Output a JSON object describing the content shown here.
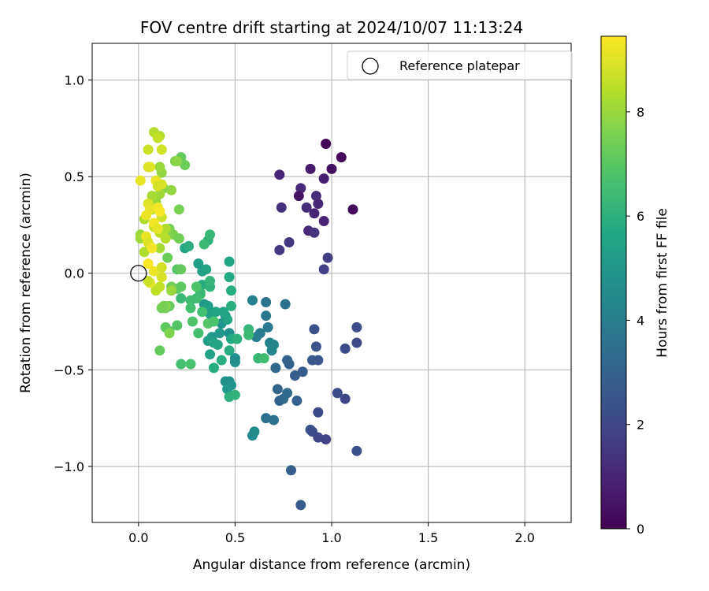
{
  "chart_data": {
    "type": "scatter",
    "title": "FOV centre drift starting at 2024/10/07 11:13:24",
    "xlabel": "Angular distance from reference (arcmin)",
    "ylabel": "Rotation from reference (arcmin)",
    "xlim": [
      -0.24,
      2.24
    ],
    "ylim": [
      -1.29,
      1.19
    ],
    "xticks": [
      0.0,
      0.5,
      1.0,
      1.5,
      2.0
    ],
    "xtick_labels": [
      "0.0",
      "0.5",
      "1.0",
      "1.5",
      "2.0"
    ],
    "yticks": [
      -1.0,
      -0.5,
      0.0,
      0.5,
      1.0
    ],
    "ytick_labels": [
      "−1.0",
      "−0.5",
      "0.0",
      "0.5",
      "1.0"
    ],
    "grid": true,
    "legend": {
      "placement": "top-right",
      "entries": [
        "Reference platepar"
      ]
    },
    "reference_point": {
      "x": 0.0,
      "y": 0.0
    },
    "colorbar": {
      "label": "Hours from first FF file",
      "range": [
        0,
        9.45
      ],
      "colormap": "viridis",
      "ticks": [
        0,
        2,
        4,
        6,
        8
      ],
      "tick_labels": [
        "0",
        "2",
        "4",
        "6",
        "8"
      ]
    },
    "points": [
      {
        "x": 0.97,
        "y": 0.67,
        "c": 0.1
      },
      {
        "x": 1.05,
        "y": 0.6,
        "c": 0.2
      },
      {
        "x": 1.11,
        "y": 0.33,
        "c": 0.2
      },
      {
        "x": 1.0,
        "y": 0.54,
        "c": 0.4
      },
      {
        "x": 0.89,
        "y": 0.54,
        "c": 0.7
      },
      {
        "x": 0.96,
        "y": 0.49,
        "c": 0.8
      },
      {
        "x": 0.73,
        "y": 0.51,
        "c": 1.0
      },
      {
        "x": 0.84,
        "y": 0.44,
        "c": 1.1
      },
      {
        "x": 0.83,
        "y": 0.4,
        "c": 0.5
      },
      {
        "x": 0.92,
        "y": 0.4,
        "c": 1.2
      },
      {
        "x": 0.93,
        "y": 0.36,
        "c": 1.1
      },
      {
        "x": 0.91,
        "y": 0.31,
        "c": 1.0
      },
      {
        "x": 0.87,
        "y": 0.34,
        "c": 1.2
      },
      {
        "x": 0.74,
        "y": 0.34,
        "c": 1.3
      },
      {
        "x": 0.96,
        "y": 0.27,
        "c": 0.9
      },
      {
        "x": 0.88,
        "y": 0.22,
        "c": 1.1
      },
      {
        "x": 0.91,
        "y": 0.21,
        "c": 1.4
      },
      {
        "x": 0.78,
        "y": 0.16,
        "c": 1.5
      },
      {
        "x": 0.73,
        "y": 0.12,
        "c": 1.6
      },
      {
        "x": 0.98,
        "y": 0.08,
        "c": 1.7
      },
      {
        "x": 0.96,
        "y": 0.02,
        "c": 1.8
      },
      {
        "x": 1.13,
        "y": -0.28,
        "c": 2.2
      },
      {
        "x": 1.13,
        "y": -0.36,
        "c": 2.1
      },
      {
        "x": 1.07,
        "y": -0.39,
        "c": 2.2
      },
      {
        "x": 0.91,
        "y": -0.29,
        "c": 2.3
      },
      {
        "x": 0.92,
        "y": -0.38,
        "c": 2.4
      },
      {
        "x": 0.9,
        "y": -0.45,
        "c": 2.6
      },
      {
        "x": 0.93,
        "y": -0.45,
        "c": 2.5
      },
      {
        "x": 0.85,
        "y": -0.51,
        "c": 2.7
      },
      {
        "x": 0.81,
        "y": -0.53,
        "c": 2.8
      },
      {
        "x": 1.03,
        "y": -0.62,
        "c": 2.2
      },
      {
        "x": 1.07,
        "y": -0.65,
        "c": 2.0
      },
      {
        "x": 0.93,
        "y": -0.72,
        "c": 2.1
      },
      {
        "x": 0.89,
        "y": -0.81,
        "c": 2.4
      },
      {
        "x": 0.9,
        "y": -0.82,
        "c": 2.2
      },
      {
        "x": 0.93,
        "y": -0.85,
        "c": 2.0
      },
      {
        "x": 0.97,
        "y": -0.86,
        "c": 1.9
      },
      {
        "x": 1.13,
        "y": -0.92,
        "c": 2.3
      },
      {
        "x": 0.77,
        "y": -0.45,
        "c": 2.9
      },
      {
        "x": 0.78,
        "y": -0.47,
        "c": 3.0
      },
      {
        "x": 0.71,
        "y": -0.49,
        "c": 3.2
      },
      {
        "x": 0.72,
        "y": -0.6,
        "c": 3.1
      },
      {
        "x": 0.77,
        "y": -0.62,
        "c": 3.3
      },
      {
        "x": 0.73,
        "y": -0.66,
        "c": 3.0
      },
      {
        "x": 0.75,
        "y": -0.65,
        "c": 3.2
      },
      {
        "x": 0.82,
        "y": -0.66,
        "c": 2.9
      },
      {
        "x": 0.66,
        "y": -0.75,
        "c": 3.4
      },
      {
        "x": 0.7,
        "y": -0.76,
        "c": 3.5
      },
      {
        "x": 0.79,
        "y": -1.02,
        "c": 2.8
      },
      {
        "x": 0.84,
        "y": -1.2,
        "c": 2.7
      },
      {
        "x": 0.66,
        "y": -0.15,
        "c": 3.6
      },
      {
        "x": 0.76,
        "y": -0.16,
        "c": 3.5
      },
      {
        "x": 0.66,
        "y": -0.22,
        "c": 3.7
      },
      {
        "x": 0.67,
        "y": -0.28,
        "c": 3.8
      },
      {
        "x": 0.63,
        "y": -0.31,
        "c": 3.9
      },
      {
        "x": 0.61,
        "y": -0.33,
        "c": 4.0
      },
      {
        "x": 0.59,
        "y": -0.14,
        "c": 4.1
      },
      {
        "x": 0.68,
        "y": -0.36,
        "c": 4.1
      },
      {
        "x": 0.7,
        "y": -0.37,
        "c": 4.2
      },
      {
        "x": 0.69,
        "y": -0.4,
        "c": 4.3
      },
      {
        "x": 0.62,
        "y": -0.44,
        "c": 4.4
      },
      {
        "x": 0.6,
        "y": -0.82,
        "c": 4.6
      },
      {
        "x": 0.59,
        "y": -0.84,
        "c": 4.5
      },
      {
        "x": 0.47,
        "y": -0.56,
        "c": 4.7
      },
      {
        "x": 0.45,
        "y": -0.56,
        "c": 4.8
      },
      {
        "x": 0.48,
        "y": -0.58,
        "c": 4.9
      },
      {
        "x": 0.46,
        "y": -0.6,
        "c": 5.0
      },
      {
        "x": 0.5,
        "y": -0.46,
        "c": 4.8
      },
      {
        "x": 0.5,
        "y": -0.44,
        "c": 4.6
      },
      {
        "x": 0.43,
        "y": -0.26,
        "c": 4.9
      },
      {
        "x": 0.42,
        "y": -0.31,
        "c": 5.0
      },
      {
        "x": 0.45,
        "y": -0.22,
        "c": 4.8
      },
      {
        "x": 0.47,
        "y": -0.31,
        "c": 4.7
      },
      {
        "x": 0.38,
        "y": -0.33,
        "c": 5.1
      },
      {
        "x": 0.36,
        "y": -0.35,
        "c": 5.2
      },
      {
        "x": 0.34,
        "y": -0.16,
        "c": 5.0
      },
      {
        "x": 0.35,
        "y": -0.18,
        "c": 4.9
      },
      {
        "x": 0.36,
        "y": -0.17,
        "c": 5.3
      },
      {
        "x": 0.37,
        "y": -0.21,
        "c": 5.4
      },
      {
        "x": 0.4,
        "y": -0.2,
        "c": 5.5
      },
      {
        "x": 0.44,
        "y": -0.2,
        "c": 5.6
      },
      {
        "x": 0.46,
        "y": -0.24,
        "c": 5.5
      },
      {
        "x": 0.48,
        "y": -0.34,
        "c": 5.7
      },
      {
        "x": 0.47,
        "y": -0.4,
        "c": 5.8
      },
      {
        "x": 0.43,
        "y": -0.45,
        "c": 5.9
      },
      {
        "x": 0.41,
        "y": -0.37,
        "c": 5.6
      },
      {
        "x": 0.39,
        "y": -0.36,
        "c": 5.5
      },
      {
        "x": 0.37,
        "y": -0.42,
        "c": 5.4
      },
      {
        "x": 0.39,
        "y": -0.49,
        "c": 5.8
      },
      {
        "x": 0.47,
        "y": -0.64,
        "c": 6.0
      },
      {
        "x": 0.5,
        "y": -0.63,
        "c": 6.1
      },
      {
        "x": 0.51,
        "y": -0.34,
        "c": 6.0
      },
      {
        "x": 0.48,
        "y": -0.09,
        "c": 5.8
      },
      {
        "x": 0.47,
        "y": -0.02,
        "c": 5.7
      },
      {
        "x": 0.47,
        "y": 0.06,
        "c": 5.6
      },
      {
        "x": 0.48,
        "y": -0.17,
        "c": 5.9
      },
      {
        "x": 0.33,
        "y": 0.01,
        "c": 5.4
      },
      {
        "x": 0.35,
        "y": 0.02,
        "c": 5.5
      },
      {
        "x": 0.31,
        "y": 0.05,
        "c": 5.3
      },
      {
        "x": 0.33,
        "y": -0.06,
        "c": 5.8
      },
      {
        "x": 0.37,
        "y": -0.07,
        "c": 6.1
      },
      {
        "x": 0.37,
        "y": -0.04,
        "c": 6.2
      },
      {
        "x": 0.24,
        "y": 0.13,
        "c": 5.6
      },
      {
        "x": 0.26,
        "y": 0.14,
        "c": 5.9
      },
      {
        "x": 0.36,
        "y": 0.17,
        "c": 6.0
      },
      {
        "x": 0.37,
        "y": 0.2,
        "c": 6.3
      },
      {
        "x": 0.34,
        "y": 0.15,
        "c": 6.4
      },
      {
        "x": 0.57,
        "y": -0.29,
        "c": 6.2
      },
      {
        "x": 0.57,
        "y": -0.32,
        "c": 6.4
      },
      {
        "x": 0.62,
        "y": -0.44,
        "c": 6.3
      },
      {
        "x": 0.65,
        "y": -0.44,
        "c": 6.5
      },
      {
        "x": 0.27,
        "y": -0.14,
        "c": 6.5
      },
      {
        "x": 0.27,
        "y": -0.18,
        "c": 6.6
      },
      {
        "x": 0.22,
        "y": -0.13,
        "c": 6.4
      },
      {
        "x": 0.32,
        "y": -0.11,
        "c": 6.7
      },
      {
        "x": 0.33,
        "y": -0.2,
        "c": 6.6
      },
      {
        "x": 0.28,
        "y": -0.25,
        "c": 6.8
      },
      {
        "x": 0.31,
        "y": -0.31,
        "c": 6.6
      },
      {
        "x": 0.36,
        "y": -0.26,
        "c": 6.9
      },
      {
        "x": 0.39,
        "y": -0.25,
        "c": 6.7
      },
      {
        "x": 0.22,
        "y": -0.47,
        "c": 6.6
      },
      {
        "x": 0.27,
        "y": -0.47,
        "c": 6.7
      },
      {
        "x": 0.2,
        "y": -0.27,
        "c": 6.9
      },
      {
        "x": 0.16,
        "y": -0.3,
        "c": 7.0
      },
      {
        "x": 0.14,
        "y": -0.28,
        "c": 7.1
      },
      {
        "x": 0.11,
        "y": -0.4,
        "c": 7.2
      },
      {
        "x": 0.14,
        "y": -0.18,
        "c": 7.3
      },
      {
        "x": 0.12,
        "y": -0.18,
        "c": 7.4
      },
      {
        "x": 0.16,
        "y": -0.17,
        "c": 7.2
      },
      {
        "x": 0.2,
        "y": -0.08,
        "c": 7.0
      },
      {
        "x": 0.22,
        "y": -0.07,
        "c": 7.1
      },
      {
        "x": 0.17,
        "y": -0.07,
        "c": 7.4
      },
      {
        "x": 0.2,
        "y": 0.02,
        "c": 6.9
      },
      {
        "x": 0.22,
        "y": 0.02,
        "c": 7.2
      },
      {
        "x": 0.15,
        "y": 0.08,
        "c": 7.3
      },
      {
        "x": 0.16,
        "y": 0.23,
        "c": 7.5
      },
      {
        "x": 0.18,
        "y": 0.2,
        "c": 7.6
      },
      {
        "x": 0.21,
        "y": 0.18,
        "c": 7.4
      },
      {
        "x": 0.21,
        "y": 0.33,
        "c": 7.5
      },
      {
        "x": 0.22,
        "y": 0.6,
        "c": 7.2
      },
      {
        "x": 0.24,
        "y": 0.56,
        "c": 7.3
      },
      {
        "x": 0.19,
        "y": 0.58,
        "c": 7.6
      },
      {
        "x": 0.2,
        "y": 0.58,
        "c": 7.8
      },
      {
        "x": 0.12,
        "y": 0.52,
        "c": 7.9
      },
      {
        "x": 0.11,
        "y": 0.55,
        "c": 8.0
      },
      {
        "x": 0.17,
        "y": 0.43,
        "c": 7.9
      },
      {
        "x": 0.13,
        "y": 0.44,
        "c": 7.8
      },
      {
        "x": 0.11,
        "y": 0.41,
        "c": 8.1
      },
      {
        "x": 0.09,
        "y": 0.37,
        "c": 8.0
      },
      {
        "x": 0.07,
        "y": 0.4,
        "c": 8.2
      },
      {
        "x": 0.07,
        "y": 0.33,
        "c": 8.1
      },
      {
        "x": 0.03,
        "y": 0.28,
        "c": 8.3
      },
      {
        "x": 0.01,
        "y": 0.2,
        "c": 8.0
      },
      {
        "x": 0.01,
        "y": 0.18,
        "c": 8.1
      },
      {
        "x": 0.03,
        "y": 0.11,
        "c": 8.3
      },
      {
        "x": 0.06,
        "y": 0.14,
        "c": 8.4
      },
      {
        "x": 0.11,
        "y": 0.13,
        "c": 8.2
      },
      {
        "x": 0.11,
        "y": 0.21,
        "c": 8.5
      },
      {
        "x": 0.14,
        "y": 0.23,
        "c": 8.3
      },
      {
        "x": 0.14,
        "y": 0.18,
        "c": 8.4
      },
      {
        "x": 0.08,
        "y": 0.24,
        "c": 8.6
      },
      {
        "x": 0.12,
        "y": 0.29,
        "c": 8.7
      },
      {
        "x": 0.08,
        "y": 0.73,
        "c": 8.4
      },
      {
        "x": 0.11,
        "y": 0.71,
        "c": 8.3
      },
      {
        "x": 0.1,
        "y": 0.7,
        "c": 8.6
      },
      {
        "x": 0.12,
        "y": 0.64,
        "c": 8.8
      },
      {
        "x": 0.05,
        "y": 0.64,
        "c": 8.7
      },
      {
        "x": 0.05,
        "y": 0.55,
        "c": 8.9
      },
      {
        "x": 0.06,
        "y": 0.55,
        "c": 9.0
      },
      {
        "x": 0.01,
        "y": 0.48,
        "c": 9.1
      },
      {
        "x": 0.09,
        "y": 0.48,
        "c": 9.2
      },
      {
        "x": 0.1,
        "y": 0.45,
        "c": 8.8
      },
      {
        "x": 0.12,
        "y": 0.46,
        "c": 8.9
      },
      {
        "x": 0.05,
        "y": 0.36,
        "c": 9.0
      },
      {
        "x": 0.06,
        "y": 0.33,
        "c": 9.1
      },
      {
        "x": 0.1,
        "y": 0.34,
        "c": 9.3
      },
      {
        "x": 0.11,
        "y": 0.32,
        "c": 9.4
      },
      {
        "x": 0.04,
        "y": 0.3,
        "c": 9.2
      },
      {
        "x": 0.08,
        "y": 0.26,
        "c": 9.3
      },
      {
        "x": 0.1,
        "y": 0.23,
        "c": 9.1
      },
      {
        "x": 0.04,
        "y": 0.19,
        "c": 9.2
      },
      {
        "x": 0.05,
        "y": 0.16,
        "c": 9.0
      },
      {
        "x": 0.07,
        "y": 0.13,
        "c": 9.3
      },
      {
        "x": 0.05,
        "y": 0.05,
        "c": 9.4
      },
      {
        "x": 0.08,
        "y": 0.01,
        "c": 9.2
      },
      {
        "x": 0.12,
        "y": 0.03,
        "c": 8.8
      },
      {
        "x": 0.06,
        "y": -0.05,
        "c": 9.1
      },
      {
        "x": 0.12,
        "y": -0.02,
        "c": 8.9
      },
      {
        "x": 0.11,
        "y": -0.07,
        "c": 8.6
      },
      {
        "x": 0.09,
        "y": -0.09,
        "c": 8.5
      },
      {
        "x": 0.05,
        "y": -0.04,
        "c": 8.7
      },
      {
        "x": 0.17,
        "y": -0.09,
        "c": 8.0
      },
      {
        "x": 0.14,
        "y": -0.17,
        "c": 7.8
      },
      {
        "x": 0.16,
        "y": -0.31,
        "c": 7.6
      },
      {
        "x": 0.13,
        "y": -0.17,
        "c": 7.5
      },
      {
        "x": 0.32,
        "y": -0.1,
        "c": 6.3
      },
      {
        "x": 0.3,
        "y": -0.13,
        "c": 6.5
      },
      {
        "x": 0.3,
        "y": -0.07,
        "c": 6.8
      }
    ]
  }
}
